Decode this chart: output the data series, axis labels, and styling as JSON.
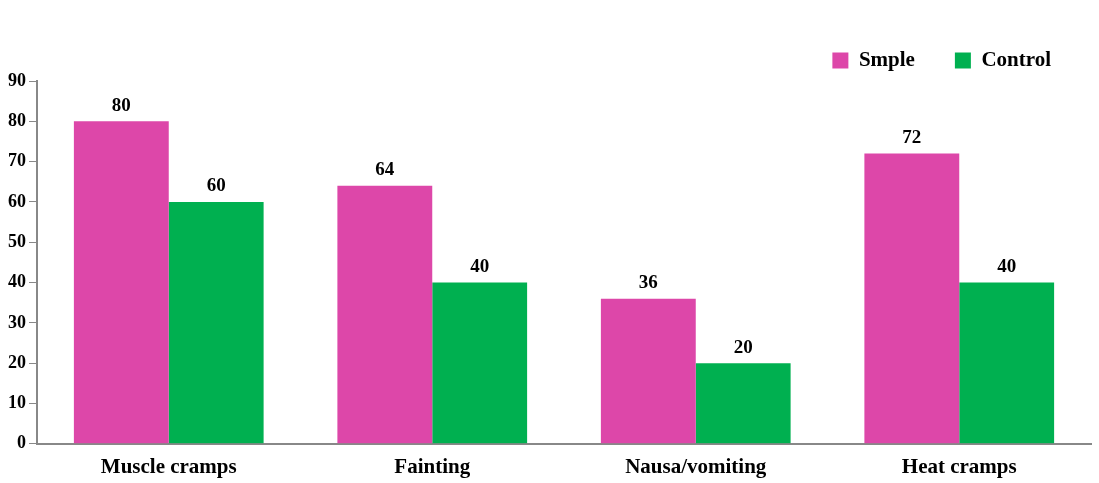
{
  "chart_data": {
    "type": "bar",
    "categories": [
      "Muscle cramps",
      "Fainting",
      "Nausa/vomiting",
      "Heat cramps"
    ],
    "series": [
      {
        "name": "Smple",
        "color": "#dd47a9",
        "values": [
          80,
          64,
          36,
          72
        ]
      },
      {
        "name": "Control",
        "color": "#00b050",
        "values": [
          60,
          40,
          20,
          40
        ]
      }
    ],
    "ylim": [
      0,
      90
    ],
    "yticks": [
      0,
      10,
      20,
      30,
      40,
      50,
      60,
      70,
      80,
      90
    ],
    "grid": false,
    "legend": "top right",
    "data_labels": true
  }
}
